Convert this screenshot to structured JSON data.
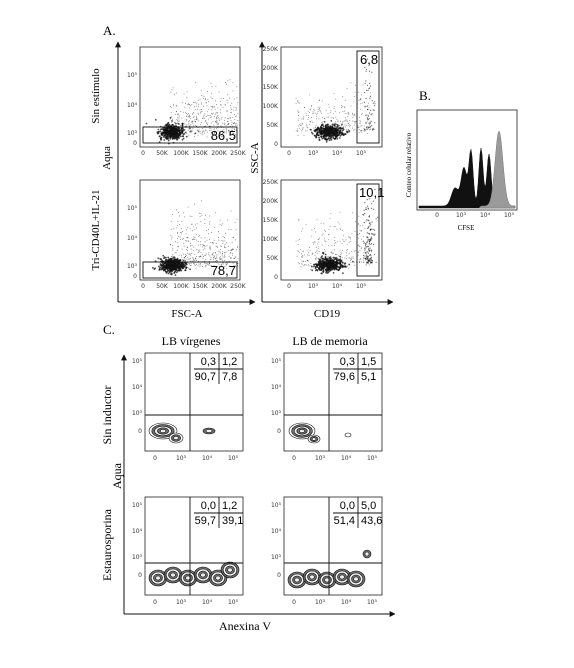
{
  "panel_labels": {
    "a": "A.",
    "b": "B.",
    "c": "C."
  },
  "panel_a": {
    "row_labels": [
      "Sin estímulo",
      "Tri-CD40L+IL-21"
    ],
    "y_label_left": "Aqua",
    "y_label_right": "SSC-A",
    "x_label_left": "FSC-A",
    "x_label_right": "CD19",
    "gates": {
      "sin_estimulo_fsc": "86,5",
      "sin_estimulo_cd19": "6,8",
      "tri_fsc": "78,7",
      "tri_cd19": "10,1"
    },
    "fsc_ticks": [
      "0",
      "50K",
      "100K",
      "150K",
      "200K",
      "250K"
    ],
    "cd19_ticks": [
      "0",
      "10³",
      "10⁴",
      "10⁵"
    ],
    "aqua_ticks": [
      "0",
      "10³",
      "10⁴",
      "10⁵"
    ],
    "ssc_ticks": [
      "0",
      "50K",
      "100K",
      "150K",
      "200K",
      "250K"
    ]
  },
  "panel_b": {
    "y_label": "Conteo celular relativo",
    "x_label": "CFSE",
    "ticks": [
      "0",
      "10³",
      "10⁴",
      "10⁵"
    ],
    "colors": {
      "divided": "#111111",
      "undivided": "#9a9a9a"
    }
  },
  "panel_c": {
    "col_labels": [
      "LB vírgenes",
      "LB de memoria"
    ],
    "row_labels": [
      "Sin inductor",
      "Estaurosporina"
    ],
    "y_label": "Aqua",
    "x_label": "Anexina V",
    "quadrants": {
      "sin_virgenes": [
        "0,3",
        "1,2",
        "90,7",
        "7,8"
      ],
      "sin_memoria": [
        "0,3",
        "1,5",
        "79,6",
        "5,1"
      ],
      "est_virgenes": [
        "0,0",
        "1,2",
        "59,7",
        "39,1"
      ],
      "est_memoria": [
        "0,0",
        "5,0",
        "51,4",
        "43,6"
      ]
    },
    "ticks": [
      "0",
      "10³",
      "10⁴",
      "10⁵"
    ]
  }
}
